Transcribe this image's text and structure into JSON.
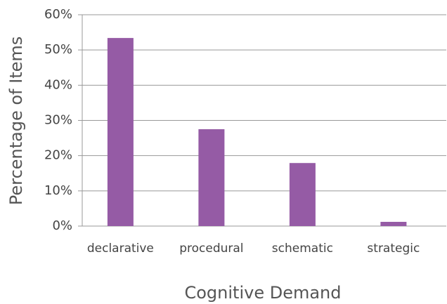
{
  "chart_data": {
    "type": "bar",
    "categories": [
      "declarative",
      "procedural",
      "schematic",
      "strategic"
    ],
    "values": [
      53.4,
      27.5,
      17.9,
      1.2
    ],
    "color": "#955ba5",
    "xlabel": "Cognitive Demand",
    "ylabel": "Percentage of Items",
    "ylim": [
      0,
      60
    ],
    "yticks": [
      {
        "value": 0,
        "label": "0%"
      },
      {
        "value": 10,
        "label": "10%"
      },
      {
        "value": 20,
        "label": "20%"
      },
      {
        "value": 30,
        "label": "30%"
      },
      {
        "value": 40,
        "label": "40%"
      },
      {
        "value": 50,
        "label": "50%"
      },
      {
        "value": 60,
        "label": "60%"
      }
    ],
    "grid": true
  }
}
